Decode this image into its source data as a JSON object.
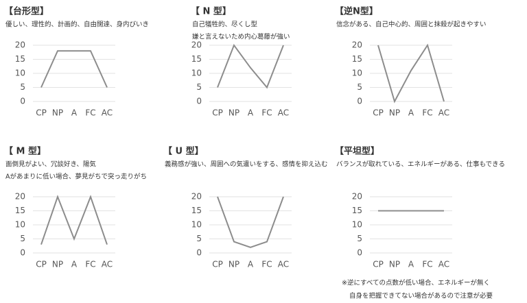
{
  "chart_data": [
    {
      "type": "line",
      "title": "【台形型】",
      "subtitle": [
        "優しい、理性的、計画的、自由闊達、身内びいき"
      ],
      "categories": [
        "CP",
        "NP",
        "A",
        "FC",
        "AC"
      ],
      "values": [
        5,
        18,
        18,
        18,
        5
      ],
      "color": "#8c8c8c",
      "ylim": [
        0,
        20
      ],
      "yticks": [
        0,
        5,
        10,
        15,
        20
      ],
      "grid": true
    },
    {
      "type": "line",
      "title": "【 N 型】",
      "subtitle": [
        "自己犠牲的、尽くし型",
        "嫌と言えないため内心葛藤が強い"
      ],
      "categories": [
        "CP",
        "NP",
        "A",
        "FC",
        "AC"
      ],
      "values": [
        5,
        20,
        12,
        5,
        20
      ],
      "color": "#8c8c8c",
      "ylim": [
        0,
        20
      ],
      "yticks": [
        0,
        5,
        10,
        15,
        20
      ],
      "grid": true
    },
    {
      "type": "line",
      "title": "【逆N型】",
      "subtitle": [
        "信念がある、自己中心的、周囲と抹殺が起きやすい"
      ],
      "categories": [
        "CP",
        "NP",
        "A",
        "FC",
        "AC"
      ],
      "values": [
        20,
        0,
        11,
        20,
        0
      ],
      "color": "#8c8c8c",
      "ylim": [
        0,
        20
      ],
      "yticks": [
        0,
        5,
        10,
        15,
        20
      ],
      "grid": true
    },
    {
      "type": "line",
      "title": "【 M 型】",
      "subtitle": [
        "面倒見がよい、冗談好き、陽気",
        "Aがあまりに低い場合、夢見がちで突っ走りがち"
      ],
      "categories": [
        "CP",
        "NP",
        "A",
        "FC",
        "AC"
      ],
      "values": [
        3,
        20,
        5,
        20,
        3
      ],
      "color": "#8c8c8c",
      "ylim": [
        0,
        20
      ],
      "yticks": [
        0,
        5,
        10,
        15,
        20
      ],
      "grid": true
    },
    {
      "type": "line",
      "title": "【 U 型】",
      "subtitle": [
        "義務感が強い、周囲への気遣いをする、感情を抑え込む"
      ],
      "categories": [
        "CP",
        "NP",
        "A",
        "FC",
        "AC"
      ],
      "values": [
        20,
        4,
        2,
        4,
        20
      ],
      "color": "#8c8c8c",
      "ylim": [
        0,
        20
      ],
      "yticks": [
        0,
        5,
        10,
        15,
        20
      ],
      "grid": true
    },
    {
      "type": "line",
      "title": "【平坦型】",
      "subtitle": [
        "バランスが取れている、エネルギーがある、仕事もできる"
      ],
      "categories": [
        "CP",
        "NP",
        "A",
        "FC",
        "AC"
      ],
      "values": [
        15,
        15,
        15,
        15,
        15
      ],
      "color": "#8c8c8c",
      "ylim": [
        0,
        20
      ],
      "yticks": [
        0,
        5,
        10,
        15,
        20
      ],
      "grid": true
    }
  ],
  "footnote": [
    "※逆にすべての点数が低い場合、エネルギーが無く",
    "自身を把握できてない場合があるので注意が必要"
  ]
}
